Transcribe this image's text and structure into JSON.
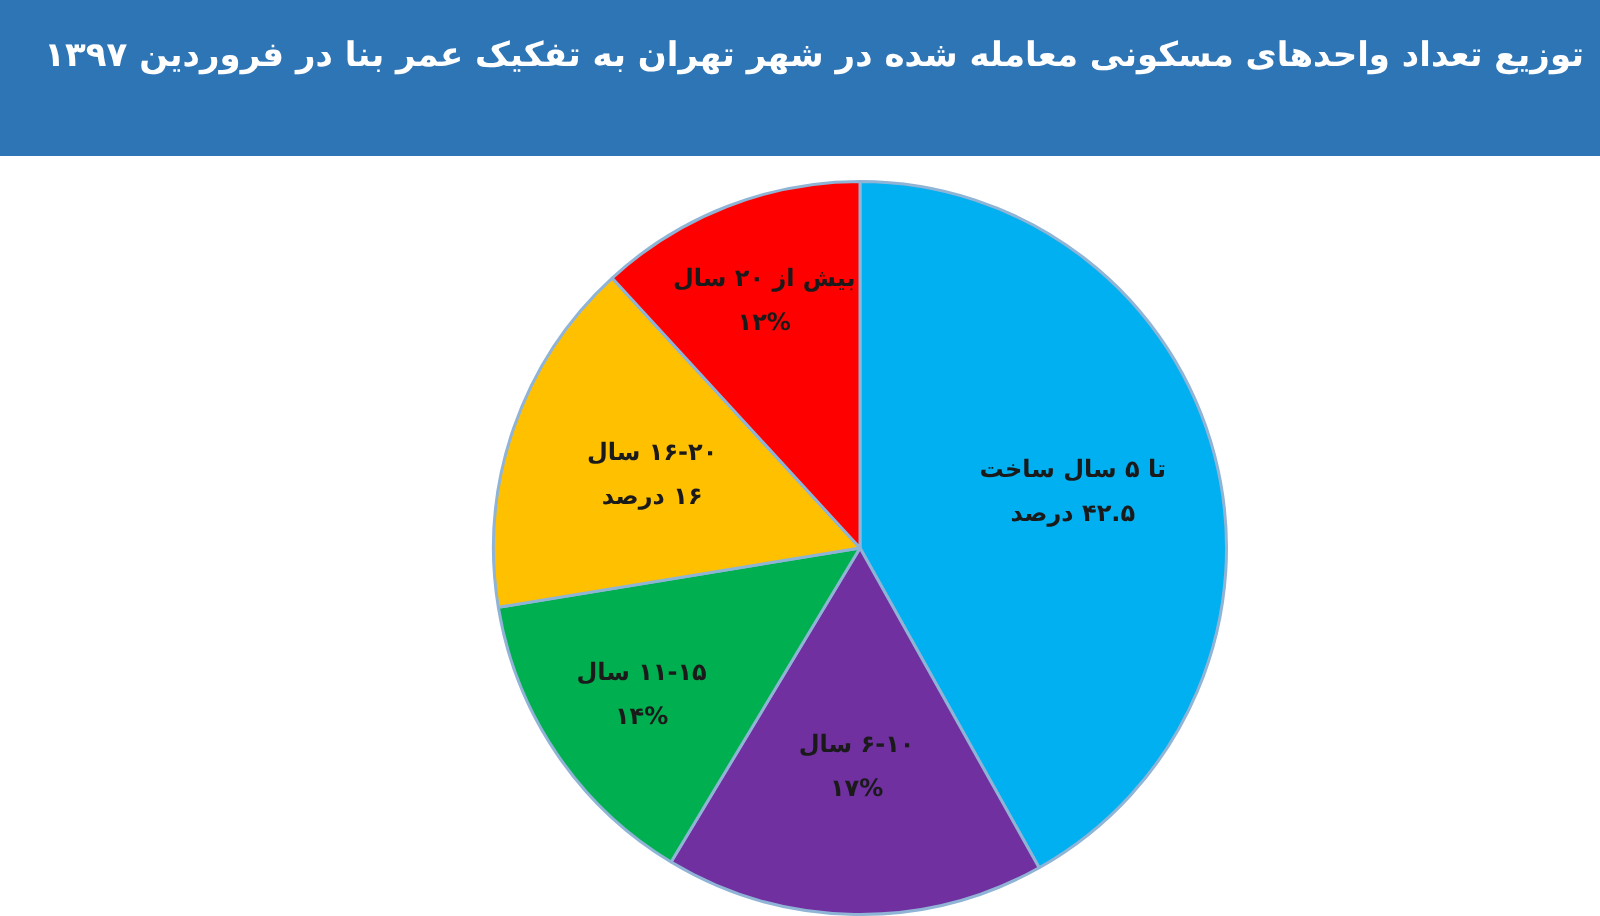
{
  "chart_data": {
    "type": "pie",
    "title": "توزیع تعداد واحدهای مسکونی معامله شده در شهر تهران به تفکیک عمر بنا  در فروردین ۱۳۹۷",
    "categories": [
      "تا ۵ سال ساخت",
      "۶-۱۰ سال",
      "۱۱-۱۵ سال",
      "۱۶-۲۰ سال",
      "بیش از ۲۰ سال"
    ],
    "values": [
      42.5,
      17,
      14,
      16,
      12
    ],
    "value_labels": [
      "۴۲.۵ درصد",
      "۱۷%",
      "۱۴%",
      "۱۶ درصد",
      "۱۲%"
    ],
    "colors": [
      "#00b0f0",
      "#7030a0",
      "#00b050",
      "#ffc000",
      "#ff0000"
    ],
    "legend": false
  }
}
